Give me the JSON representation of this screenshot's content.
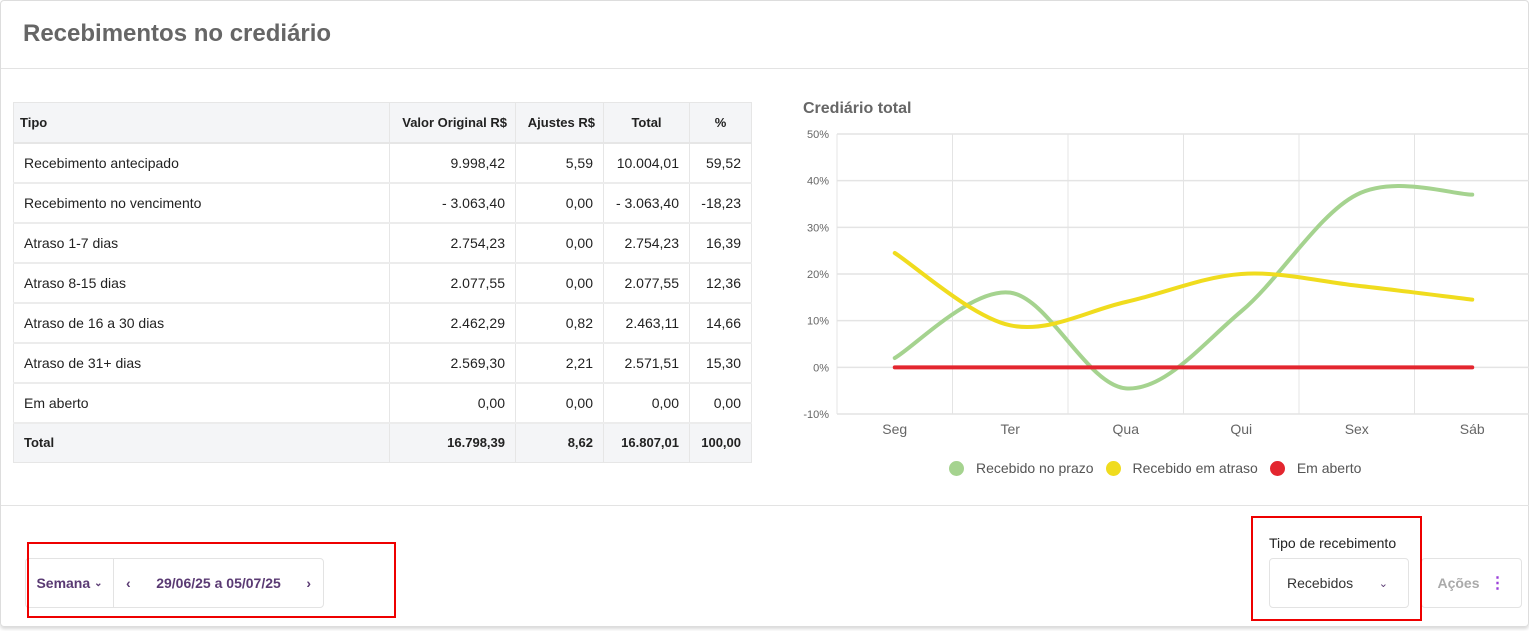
{
  "page": {
    "title": "Recebimentos no crediário"
  },
  "table": {
    "headers": [
      "Tipo",
      "Valor Original R$",
      "Ajustes R$",
      "Total",
      "%"
    ],
    "rows": [
      [
        "Recebimento antecipado",
        "9.998,42",
        "5,59",
        "10.004,01",
        "59,52"
      ],
      [
        "Recebimento no vencimento",
        "- 3.063,40",
        "0,00",
        "- 3.063,40",
        "-18,23"
      ],
      [
        "Atraso 1-7 dias",
        "2.754,23",
        "0,00",
        "2.754,23",
        "16,39"
      ],
      [
        "Atraso 8-15 dias",
        "2.077,55",
        "0,00",
        "2.077,55",
        "12,36"
      ],
      [
        "Atraso de 16 a 30 dias",
        "2.462,29",
        "0,82",
        "2.463,11",
        "14,66"
      ],
      [
        "Atraso de 31+ dias",
        "2.569,30",
        "2,21",
        "2.571,51",
        "15,30"
      ],
      [
        "Em aberto",
        "0,00",
        "0,00",
        "0,00",
        "0,00"
      ]
    ],
    "total": [
      "Total",
      "16.798,39",
      "8,62",
      "16.807,01",
      "100,00"
    ]
  },
  "chart_data": {
    "type": "line",
    "title": "Crediário total",
    "categories": [
      "Seg",
      "Ter",
      "Qua",
      "Qui",
      "Sex",
      "Sáb"
    ],
    "ylim": [
      -10,
      50
    ],
    "yticks": [
      "50%",
      "40%",
      "30%",
      "20%",
      "10%",
      "0%",
      "-10%"
    ],
    "grid": true,
    "legend_position": "bottom",
    "series": [
      {
        "name": "Recebido no prazo",
        "color": "#a5d38f",
        "values": [
          2,
          16,
          -4.5,
          12,
          37,
          37
        ]
      },
      {
        "name": "Recebido em atraso",
        "color": "#f0dc1e",
        "values": [
          24.5,
          9,
          14,
          20,
          17.5,
          14.5
        ]
      },
      {
        "name": "Em aberto",
        "color": "#e3262f",
        "values": [
          0,
          0,
          0,
          0,
          0,
          0
        ]
      }
    ]
  },
  "footer": {
    "period_label": "Semana",
    "date_range": "29/06/25 a 05/07/25",
    "tipo_label": "Tipo de recebimento",
    "tipo_value": "Recebidos",
    "acoes_label": "Ações"
  }
}
